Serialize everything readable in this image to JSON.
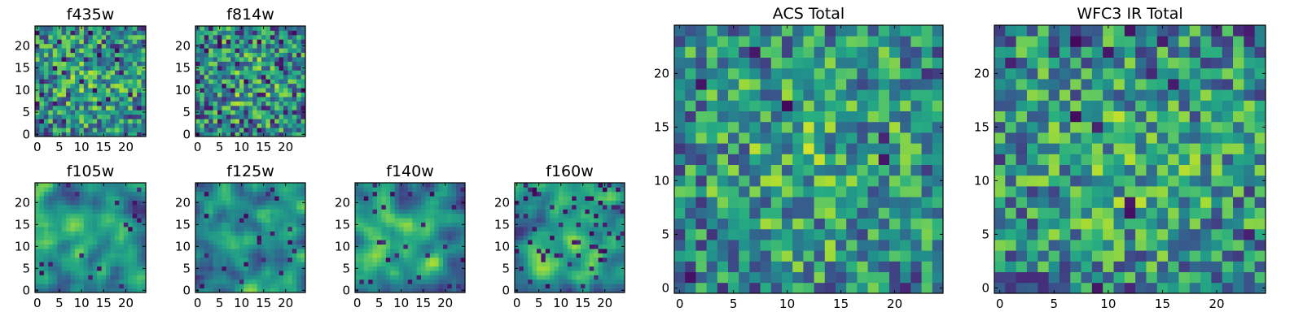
{
  "colormap": "viridis",
  "chart_data": [
    {
      "type": "heatmap",
      "title": "f435w",
      "n": 25,
      "xticks": [
        0,
        5,
        10,
        15,
        20
      ],
      "yticks": [
        0,
        5,
        10,
        15,
        20
      ],
      "seed": 11,
      "style": "noise",
      "dark_frac": 0.06
    },
    {
      "type": "heatmap",
      "title": "f814w",
      "n": 25,
      "xticks": [
        0,
        5,
        10,
        15,
        20
      ],
      "yticks": [
        0,
        5,
        10,
        15,
        20
      ],
      "seed": 23,
      "style": "noise",
      "dark_frac": 0.09
    },
    {
      "type": "heatmap",
      "title": "f105w",
      "n": 25,
      "xticks": [
        0,
        5,
        10,
        15,
        20
      ],
      "yticks": [
        0,
        5,
        10,
        15,
        20
      ],
      "seed": 37,
      "style": "smooth",
      "dark_frac": 0.03
    },
    {
      "type": "heatmap",
      "title": "f125w",
      "n": 25,
      "xticks": [
        0,
        5,
        10,
        15,
        20
      ],
      "yticks": [
        0,
        5,
        10,
        15,
        20
      ],
      "seed": 41,
      "style": "smooth",
      "dark_frac": 0.04
    },
    {
      "type": "heatmap",
      "title": "f140w",
      "n": 25,
      "xticks": [
        0,
        5,
        10,
        15,
        20
      ],
      "yticks": [
        0,
        5,
        10,
        15,
        20
      ],
      "seed": 53,
      "style": "smooth",
      "dark_frac": 0.05
    },
    {
      "type": "heatmap",
      "title": "f160w",
      "n": 25,
      "xticks": [
        0,
        5,
        10,
        15,
        20
      ],
      "yticks": [
        0,
        5,
        10,
        15,
        20
      ],
      "seed": 67,
      "style": "smooth",
      "dark_frac": 0.07
    },
    {
      "type": "heatmap",
      "title": "ACS Total",
      "n": 25,
      "xticks": [
        0,
        5,
        10,
        15,
        20
      ],
      "yticks": [
        0,
        5,
        10,
        15,
        20
      ],
      "seed": 79,
      "style": "noise",
      "dark_frac": 0.02
    },
    {
      "type": "heatmap",
      "title": "WFC3 IR Total",
      "n": 25,
      "xticks": [
        0,
        5,
        10,
        15,
        20
      ],
      "yticks": [
        0,
        5,
        10,
        15,
        20
      ],
      "seed": 97,
      "style": "noise",
      "dark_frac": 0.03
    }
  ]
}
